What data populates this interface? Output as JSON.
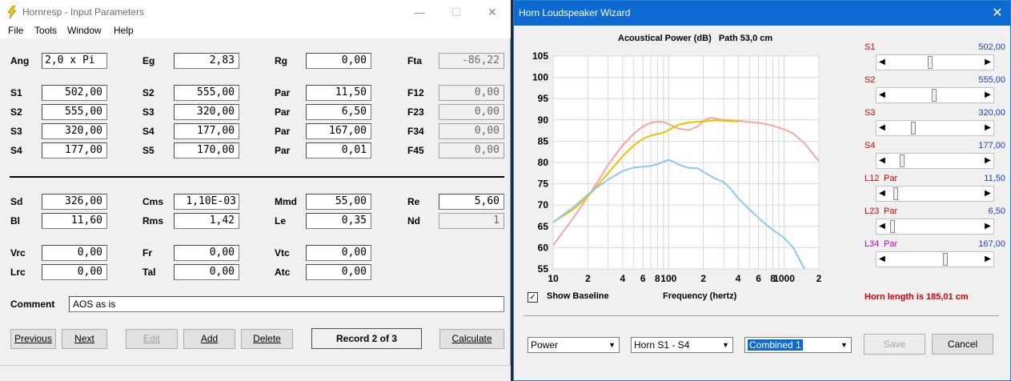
{
  "left_window": {
    "title": "Hornresp - Input Parameters",
    "menu": [
      "File",
      "Tools",
      "Window",
      "Help"
    ],
    "fields": {
      "ang": {
        "label": "Ang",
        "value": "2,0 x Pi"
      },
      "eg": {
        "label": "Eg",
        "value": "2,83"
      },
      "rg": {
        "label": "Rg",
        "value": "0,00"
      },
      "fta": {
        "label": "Fta",
        "value": "-86,22"
      },
      "s1": {
        "label": "S1",
        "value": "502,00"
      },
      "s2a": {
        "label": "S2",
        "value": "555,00"
      },
      "par1": {
        "label": "Par",
        "value": "11,50"
      },
      "f12": {
        "label": "F12",
        "value": "0,00"
      },
      "s2b": {
        "label": "S2",
        "value": "555,00"
      },
      "s3a": {
        "label": "S3",
        "value": "320,00"
      },
      "par2": {
        "label": "Par",
        "value": "6,50"
      },
      "f23": {
        "label": "F23",
        "value": "0,00"
      },
      "s3b": {
        "label": "S3",
        "value": "320,00"
      },
      "s4a": {
        "label": "S4",
        "value": "177,00"
      },
      "par3": {
        "label": "Par",
        "value": "167,00"
      },
      "f34": {
        "label": "F34",
        "value": "0,00"
      },
      "s4b": {
        "label": "S4",
        "value": "177,00"
      },
      "s5": {
        "label": "S5",
        "value": "170,00"
      },
      "par4": {
        "label": "Par",
        "value": "0,01"
      },
      "f45": {
        "label": "F45",
        "value": "0,00"
      },
      "sd": {
        "label": "Sd",
        "value": "326,00"
      },
      "cms": {
        "label": "Cms",
        "value": "1,10E-03"
      },
      "mmd": {
        "label": "Mmd",
        "value": "55,00"
      },
      "re": {
        "label": "Re",
        "value": "5,60"
      },
      "bl": {
        "label": "Bl",
        "value": "11,60"
      },
      "rms": {
        "label": "Rms",
        "value": "1,42"
      },
      "le": {
        "label": "Le",
        "value": "0,35"
      },
      "nd": {
        "label": "Nd",
        "value": "1"
      },
      "vrc": {
        "label": "Vrc",
        "value": "0,00"
      },
      "fr": {
        "label": "Fr",
        "value": "0,00"
      },
      "vtc": {
        "label": "Vtc",
        "value": "0,00"
      },
      "lrc": {
        "label": "Lrc",
        "value": "0,00"
      },
      "tal": {
        "label": "Tal",
        "value": "0,00"
      },
      "atc": {
        "label": "Atc",
        "value": "0,00"
      },
      "comment": {
        "label": "Comment",
        "value": "AOS as is"
      }
    },
    "buttons": {
      "previous": "Previous",
      "next": "Next",
      "edit": "Edit",
      "add": "Add",
      "delete": "Delete",
      "record": "Record 2 of 3",
      "calculate": "Calculate"
    }
  },
  "right_window": {
    "title": "Horn Loudspeaker Wizard",
    "close_glyph": "✕",
    "show_baseline_label": "Show Baseline",
    "show_baseline_checked": true,
    "check_glyph": "✓",
    "frequency_label": "Frequency (hertz)",
    "horn_length": "Horn length is 185,01 cm",
    "params": [
      {
        "name": "S1",
        "par": "",
        "value": "502,00",
        "level": 0.45,
        "color": "#d00000"
      },
      {
        "name": "S2",
        "par": "",
        "value": "555,00",
        "level": 0.49,
        "color": "#d00000"
      },
      {
        "name": "S3",
        "par": "",
        "value": "320,00",
        "level": 0.26,
        "color": "#d00000"
      },
      {
        "name": "S4",
        "par": "",
        "value": "177,00",
        "level": 0.13,
        "color": "#d00000"
      },
      {
        "name": "L12",
        "par": "Par",
        "value": "11,50",
        "level": 0.06,
        "color": "#d00000"
      },
      {
        "name": "L23",
        "par": "Par",
        "value": "6,50",
        "level": 0.03,
        "color": "#d00000"
      },
      {
        "name": "L34",
        "par": "Par",
        "value": "167,00",
        "level": 0.62,
        "color": "#c000c0"
      }
    ],
    "combos": {
      "mode": "Power",
      "horn": "Horn S1 - S4",
      "combined": "Combined 1"
    },
    "buttons": {
      "save": "Save",
      "cancel": "Cancel"
    }
  },
  "chart_data": {
    "type": "line",
    "title": "Acoustical Power (dB)   Path 53,0 cm",
    "xlabel": "Frequency (hertz)",
    "ylabel": "",
    "xscale": "log",
    "xlim": [
      10,
      2000
    ],
    "ylim": [
      55,
      105
    ],
    "yticks": [
      55,
      60,
      65,
      70,
      75,
      80,
      85,
      90,
      95,
      100,
      105
    ],
    "xtick_labels": [
      {
        "f": 10,
        "label": "10"
      },
      {
        "f": 20,
        "label": "2"
      },
      {
        "f": 40,
        "label": "4"
      },
      {
        "f": 60,
        "label": "6"
      },
      {
        "f": 80,
        "label": "8"
      },
      {
        "f": 100,
        "label": "100"
      },
      {
        "f": 200,
        "label": "2"
      },
      {
        "f": 400,
        "label": "4"
      },
      {
        "f": 600,
        "label": "6"
      },
      {
        "f": 800,
        "label": "8"
      },
      {
        "f": 1000,
        "label": "1000"
      },
      {
        "f": 2000,
        "label": "2"
      }
    ],
    "grid": true,
    "series": [
      {
        "color": "#f4a7a0",
        "x": [
          10,
          12,
          15,
          20,
          25,
          30,
          40,
          50,
          60,
          70,
          80,
          90,
          100,
          120,
          150,
          180,
          200,
          230,
          300,
          400,
          500,
          600,
          700,
          800,
          1000,
          1200,
          1500,
          2000
        ],
        "y": [
          60.5,
          63.5,
          67,
          72,
          76,
          79.5,
          84,
          86.8,
          88.5,
          89.3,
          89.6,
          89.5,
          89,
          88,
          87.6,
          88.5,
          89.8,
          90.5,
          90,
          89.8,
          89.5,
          89.3,
          89,
          88.6,
          87.8,
          86.8,
          84.5,
          80.3
        ]
      },
      {
        "color": "#f0c000",
        "x": [
          10,
          15,
          20,
          25,
          30,
          40,
          50,
          60,
          70,
          80,
          90,
          100,
          120,
          150,
          200,
          250,
          300,
          400
        ],
        "y": [
          66,
          69,
          72,
          75,
          77.5,
          81.5,
          84,
          85.6,
          86.3,
          86.7,
          87,
          87.6,
          88.8,
          89.4,
          89.6,
          89.9,
          89.8,
          89.6
        ]
      },
      {
        "color": "#8cc8f0",
        "x": [
          10,
          15,
          20,
          25,
          30,
          40,
          50,
          60,
          70,
          80,
          90,
          100,
          110,
          120,
          150,
          180,
          200,
          250,
          300,
          350,
          400,
          500,
          600,
          700,
          800,
          1000,
          1200,
          1500
        ],
        "y": [
          66,
          69.5,
          72.5,
          74.5,
          76,
          78,
          78.8,
          79,
          79.2,
          79.6,
          80.2,
          80.6,
          80.2,
          79.6,
          78.7,
          78.6,
          77.8,
          76.3,
          75.4,
          73.6,
          71.6,
          69,
          67,
          65.4,
          64.2,
          62.3,
          60,
          55
        ]
      }
    ]
  }
}
